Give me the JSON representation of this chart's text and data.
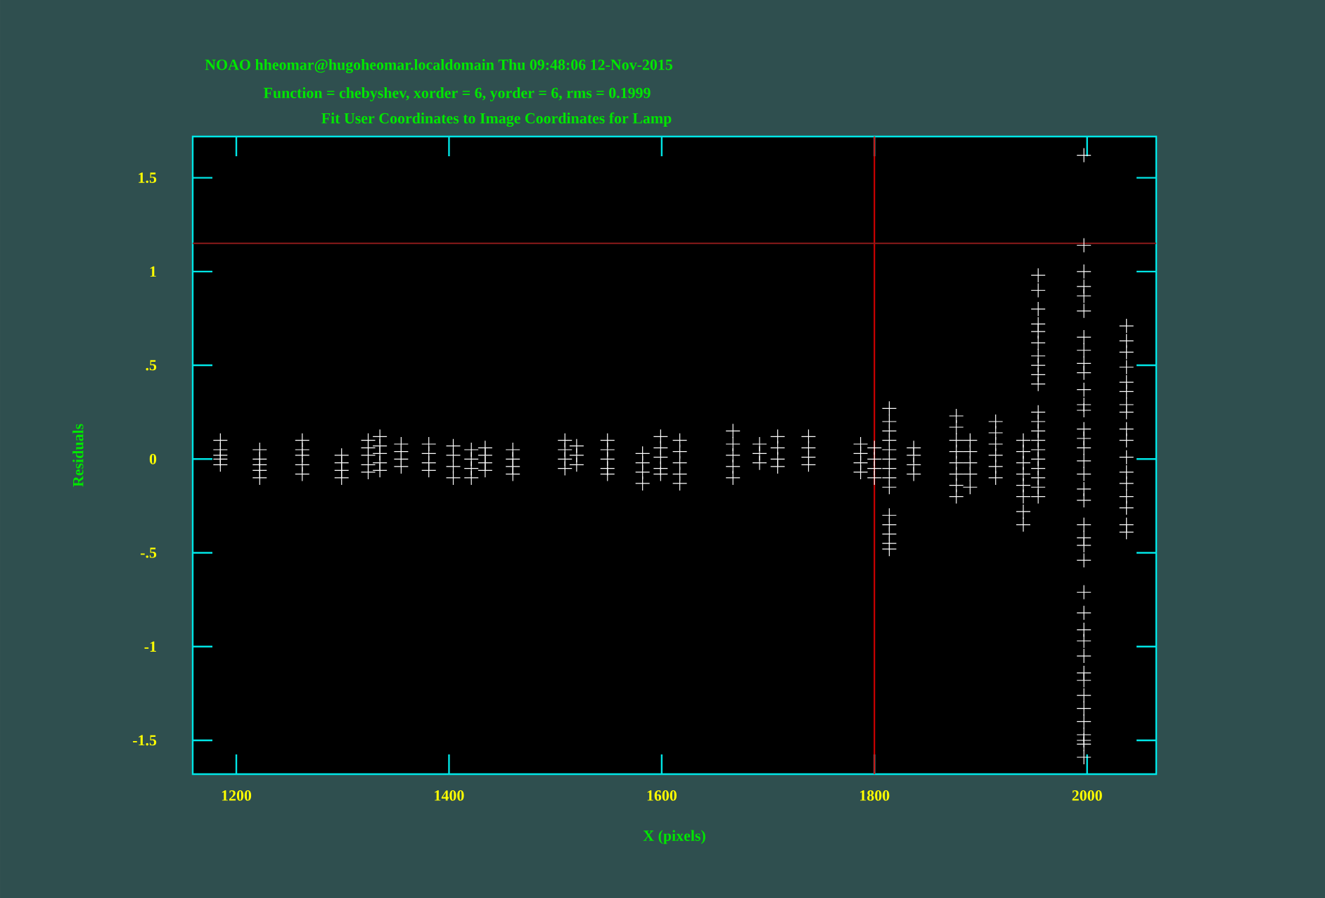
{
  "chart_data": {
    "type": "scatter",
    "annotations": [
      "NOAO hheomar@hugoheomar.localdomain Thu 09:48:06 12-Nov-2015"
    ],
    "subtitle": "Function = chebyshev, xorder = 6, yorder = 6, rms = 0.1999",
    "title": "Fit User Coordinates to Image Coordinates for Lamp",
    "xlabel": "X (pixels)",
    "ylabel": "Residuals",
    "xlim": [
      1159,
      2065
    ],
    "ylim": [
      -1.68,
      1.72
    ],
    "xticks": [
      1200,
      1400,
      1600,
      1800,
      2000
    ],
    "yticks": [
      {
        "value": -1.5,
        "label": "-1.5"
      },
      {
        "value": -1,
        "label": "-1"
      },
      {
        "value": -0.5,
        "label": "-.5"
      },
      {
        "value": 0,
        "label": "0"
      },
      {
        "value": 0.5,
        "label": ".5"
      },
      {
        "value": 1,
        "label": "1"
      },
      {
        "value": 1.5,
        "label": "1.5"
      }
    ],
    "marker": "cross",
    "ref_lines": [
      {
        "axis": "x",
        "value": 1800,
        "color": "#e00000"
      },
      {
        "axis": "y",
        "value": 1.15,
        "color": "#8b1a1a"
      }
    ],
    "series": [
      {
        "color": "#ffffff",
        "x": [
          1185,
          1185,
          1185,
          1185,
          1185,
          1222,
          1222,
          1222,
          1222,
          1222,
          1262,
          1262,
          1262,
          1262,
          1262,
          1299,
          1299,
          1299,
          1299,
          1324,
          1324,
          1324,
          1324,
          1324,
          1335,
          1335,
          1335,
          1335,
          1335,
          1355,
          1355,
          1355,
          1355,
          1381,
          1381,
          1381,
          1381,
          1404,
          1404,
          1404,
          1404,
          1421,
          1421,
          1421,
          1421,
          1434,
          1434,
          1434,
          1434,
          1460,
          1460,
          1460,
          1460,
          1509,
          1509,
          1509,
          1509,
          1520,
          1520,
          1520,
          1549,
          1549,
          1549,
          1549,
          1549,
          1582,
          1582,
          1582,
          1582,
          1599,
          1599,
          1599,
          1599,
          1599,
          1617,
          1617,
          1617,
          1617,
          1617,
          1667,
          1667,
          1667,
          1667,
          1667,
          1692,
          1692,
          1692,
          1709,
          1709,
          1709,
          1709,
          1738,
          1738,
          1738,
          1738,
          1787,
          1787,
          1787,
          1787,
          1800,
          1800,
          1800,
          1800,
          1814,
          1814,
          1814,
          1814,
          1814,
          1814,
          1814,
          1814,
          1814,
          1814,
          1814,
          1814,
          1814,
          1814,
          1837,
          1837,
          1837,
          1837,
          1877,
          1877,
          1877,
          1877,
          1877,
          1877,
          1877,
          1877,
          1890,
          1890,
          1890,
          1890,
          1890,
          1914,
          1914,
          1914,
          1914,
          1914,
          1914,
          1940,
          1940,
          1940,
          1940,
          1940,
          1940,
          1940,
          1940,
          1954,
          1954,
          1954,
          1954,
          1954,
          1954,
          1954,
          1954,
          1954,
          1954,
          1954,
          1954,
          1954,
          1954,
          1954,
          1954,
          1954,
          1954,
          1954,
          1954,
          1997,
          1997,
          1997,
          1997,
          1997,
          1997,
          1997,
          1997,
          1997,
          1997,
          1997,
          1997,
          1997,
          1997,
          1997,
          1997,
          1997,
          1997,
          1997,
          1997,
          1997,
          1997,
          1997,
          1997,
          1997,
          1997,
          1997,
          1997,
          1997,
          1997,
          1997,
          1997,
          1997,
          1997,
          1997,
          1997,
          1997,
          1997,
          2037,
          2037,
          2037,
          2037,
          2037,
          2037,
          2037,
          2037,
          2037,
          2037,
          2037,
          2037,
          2037,
          2037,
          2037,
          2037,
          2037
        ],
        "values": [
          0.1,
          0.05,
          0.02,
          0,
          -0.03,
          0.05,
          0,
          -0.03,
          -0.06,
          -0.1,
          0.1,
          0.05,
          0.02,
          -0.03,
          -0.08,
          0.02,
          -0.02,
          -0.06,
          -0.1,
          0.1,
          0.06,
          0.02,
          -0.03,
          -0.07,
          0.12,
          0.07,
          0.03,
          -0.02,
          -0.06,
          0.08,
          0.04,
          0,
          -0.04,
          0.08,
          0.03,
          -0.02,
          -0.06,
          0.07,
          0.02,
          -0.04,
          -0.1,
          0.05,
          0,
          -0.05,
          -0.1,
          0.06,
          0.02,
          -0.02,
          -0.06,
          0.05,
          0,
          -0.04,
          -0.08,
          0.1,
          0.05,
          0,
          -0.05,
          0.07,
          0.02,
          -0.03,
          0.1,
          0.05,
          0,
          -0.05,
          -0.08,
          0.03,
          -0.02,
          -0.07,
          -0.13,
          0.12,
          0.06,
          0.01,
          -0.05,
          -0.08,
          0.1,
          0.04,
          -0.02,
          -0.08,
          -0.13,
          0.15,
          0.08,
          0.02,
          -0.04,
          -0.1,
          0.08,
          0.03,
          -0.02,
          0.12,
          0.06,
          0,
          -0.04,
          0.12,
          0.06,
          0.01,
          -0.03,
          0.08,
          0.03,
          -0.02,
          -0.07,
          0.06,
          0,
          -0.05,
          -0.1,
          0.27,
          0.2,
          0.15,
          0.1,
          0.05,
          0,
          -0.05,
          -0.1,
          -0.15,
          -0.3,
          -0.35,
          -0.4,
          -0.45,
          -0.48,
          0.06,
          0.02,
          -0.03,
          -0.08,
          0.23,
          0.17,
          0.1,
          0.04,
          -0.02,
          -0.08,
          -0.14,
          -0.2,
          0.1,
          0.04,
          -0.02,
          -0.08,
          -0.15,
          0.2,
          0.14,
          0.08,
          0.02,
          -0.04,
          -0.1,
          0.1,
          0.04,
          -0.02,
          -0.08,
          -0.14,
          -0.2,
          -0.28,
          -0.35,
          0.98,
          0.9,
          0.8,
          0.72,
          0.68,
          0.62,
          0.55,
          0.5,
          0.45,
          0.4,
          0.25,
          0.2,
          0.15,
          0.1,
          0.05,
          0,
          -0.05,
          -0.1,
          -0.15,
          -0.2,
          1.62,
          1.14,
          1,
          0.92,
          0.87,
          0.79,
          0.65,
          0.58,
          0.51,
          0.46,
          0.37,
          0.29,
          0.26,
          0.16,
          0.11,
          0.06,
          -0.01,
          -0.08,
          -0.16,
          -0.22,
          -0.35,
          -0.42,
          -0.46,
          -0.54,
          -0.71,
          -0.82,
          -0.91,
          -0.97,
          -1.05,
          -1.14,
          -1.18,
          -1.26,
          -1.33,
          -1.4,
          -1.47,
          -1.5,
          -1.52,
          -1.59,
          0.71,
          0.63,
          0.57,
          0.49,
          0.41,
          0.36,
          0.29,
          0.25,
          0.16,
          0.1,
          0.01,
          -0.07,
          -0.13,
          -0.2,
          -0.26,
          -0.35,
          -0.39
        ]
      }
    ]
  }
}
